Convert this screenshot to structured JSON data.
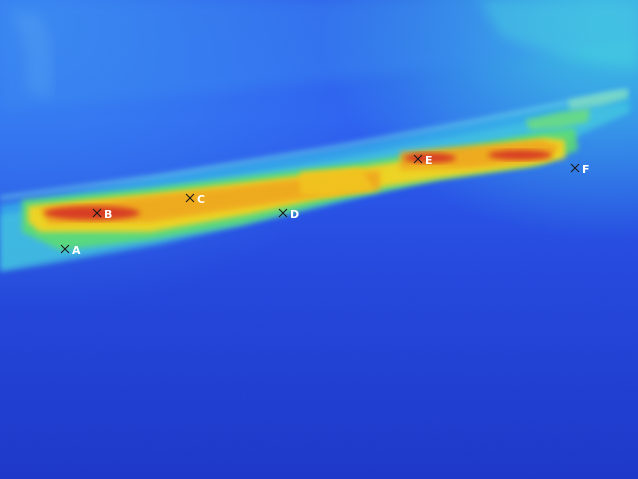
{
  "image": {
    "kind": "thermal-infrared-photo",
    "palette": {
      "cold": "#1b38d0",
      "cool": "#2e6cf0",
      "mid": "#27c4e6",
      "warm": "#5fe06a",
      "hot": "#f4d21a",
      "hotter": "#f29a10",
      "hottest": "#d8241a"
    }
  },
  "markers": [
    {
      "label": "A"
    },
    {
      "label": "B"
    },
    {
      "label": "C"
    },
    {
      "label": "D"
    },
    {
      "label": "E"
    },
    {
      "label": "F"
    }
  ]
}
